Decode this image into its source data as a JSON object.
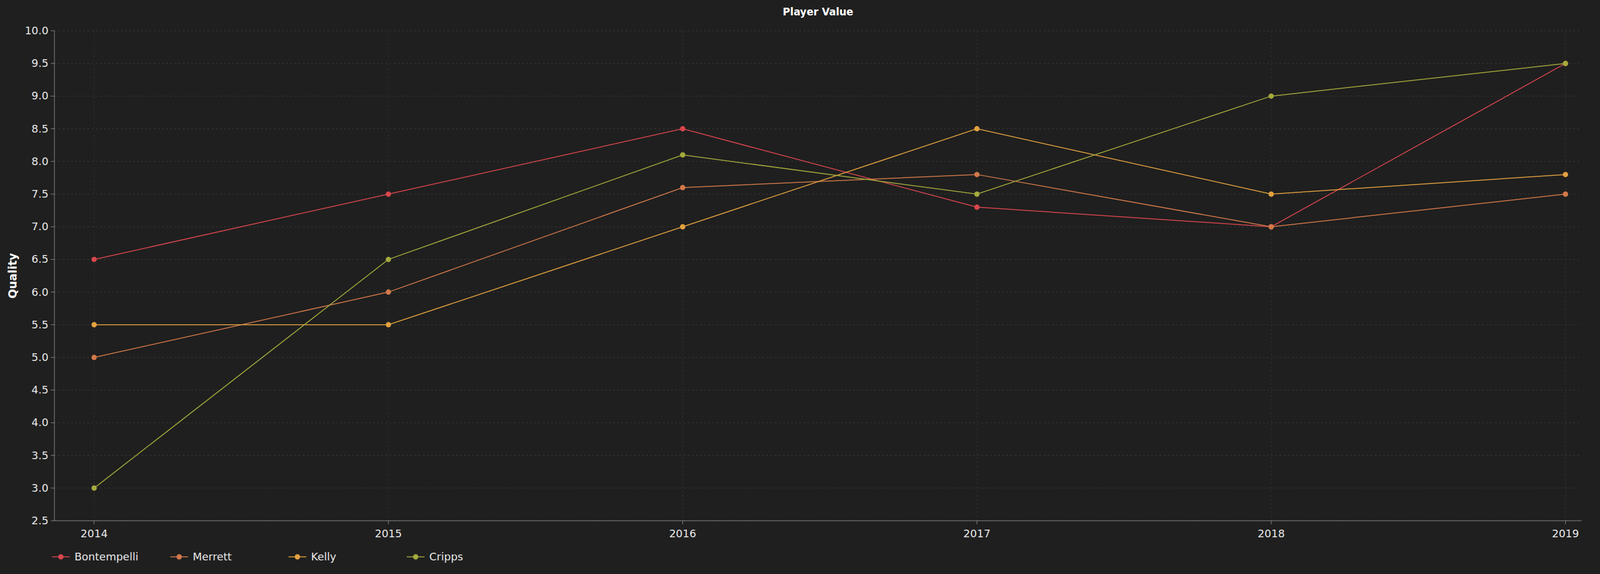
{
  "chart_data": {
    "type": "line",
    "title": "Player Value",
    "y_label": "Quality",
    "x": [
      2014,
      2015,
      2016,
      2017,
      2018,
      2019
    ],
    "xlim": [
      2013.865,
      2019.055
    ],
    "xticks": [
      2014,
      2015,
      2016,
      2017,
      2018,
      2019
    ],
    "ylim": [
      2.5,
      10.0
    ],
    "yticks": [
      {
        "value": 2.5,
        "label": "2.5"
      },
      {
        "value": 3,
        "label": "3.0"
      },
      {
        "value": 3.5,
        "label": "3.5"
      },
      {
        "value": 4,
        "label": "4.0"
      },
      {
        "value": 4.5,
        "label": "4.5"
      },
      {
        "value": 5,
        "label": "5.0"
      },
      {
        "value": 5.5,
        "label": "5.5"
      },
      {
        "value": 6,
        "label": "6.0"
      },
      {
        "value": 6.5,
        "label": "6.5"
      },
      {
        "value": 7,
        "label": "7.0"
      },
      {
        "value": 7.5,
        "label": "7.5"
      },
      {
        "value": 8,
        "label": "8.0"
      },
      {
        "value": 8.5,
        "label": "8.5"
      },
      {
        "value": 9,
        "label": "9.0"
      },
      {
        "value": 9.5,
        "label": "9.5"
      },
      {
        "value": 10,
        "label": "10.0"
      }
    ],
    "grid": true,
    "legend": "bottom-left",
    "marker": "circle",
    "series": [
      {
        "name": "Bontempelli",
        "color": "#d9464e",
        "values": [
          6.5,
          7.5,
          8.5,
          7.3,
          7.0,
          9.5
        ]
      },
      {
        "name": "Merrett",
        "color": "#d2794a",
        "values": [
          5.0,
          6.0,
          7.6,
          7.8,
          7.0,
          7.5
        ]
      },
      {
        "name": "Kelly",
        "color": "#e2a13f",
        "values": [
          5.5,
          5.5,
          7.0,
          8.5,
          7.5,
          7.8
        ]
      },
      {
        "name": "Cripps",
        "color": "#a4aa3c",
        "values": [
          3.0,
          6.5,
          8.1,
          7.5,
          9.0,
          9.5
        ]
      }
    ]
  }
}
